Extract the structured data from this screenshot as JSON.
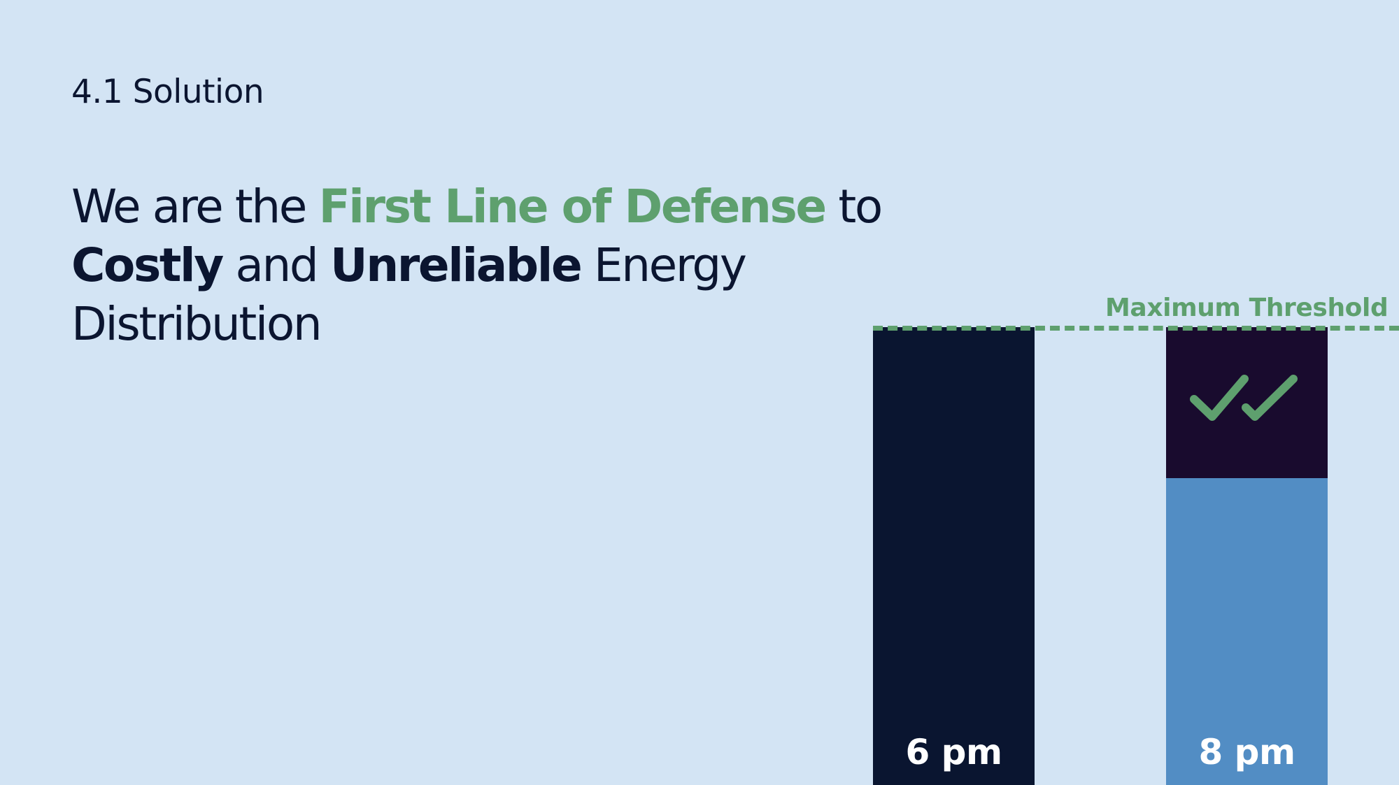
{
  "slide": {
    "section_label": "4.1 Solution",
    "headline": {
      "w1": "We are the ",
      "w2": "First Line of Defense",
      "w3": " to",
      "w4": "Costly",
      "w5": " and ",
      "w6": "Unreliable",
      "w7": " Energy",
      "w8": "Distribution"
    }
  },
  "chart_data": {
    "type": "bar",
    "categories": [
      "6 pm",
      "8 pm"
    ],
    "annotation": "Maximum Threshold",
    "bars": [
      {
        "label": "6 pm",
        "level_of_threshold": 1.0,
        "fill_fraction": 0.0
      },
      {
        "label": "8 pm",
        "level_of_threshold": 1.0,
        "fill_fraction": 0.67,
        "icon": "double-check-icon"
      }
    ]
  },
  "colors": {
    "background": "#d3e4f4",
    "text": "#0b1530",
    "accent": "#5ea06e",
    "bar_dark": "#0a1530",
    "bar_dark_alt": "#190b2e",
    "bar_fill": "#528dc4"
  }
}
